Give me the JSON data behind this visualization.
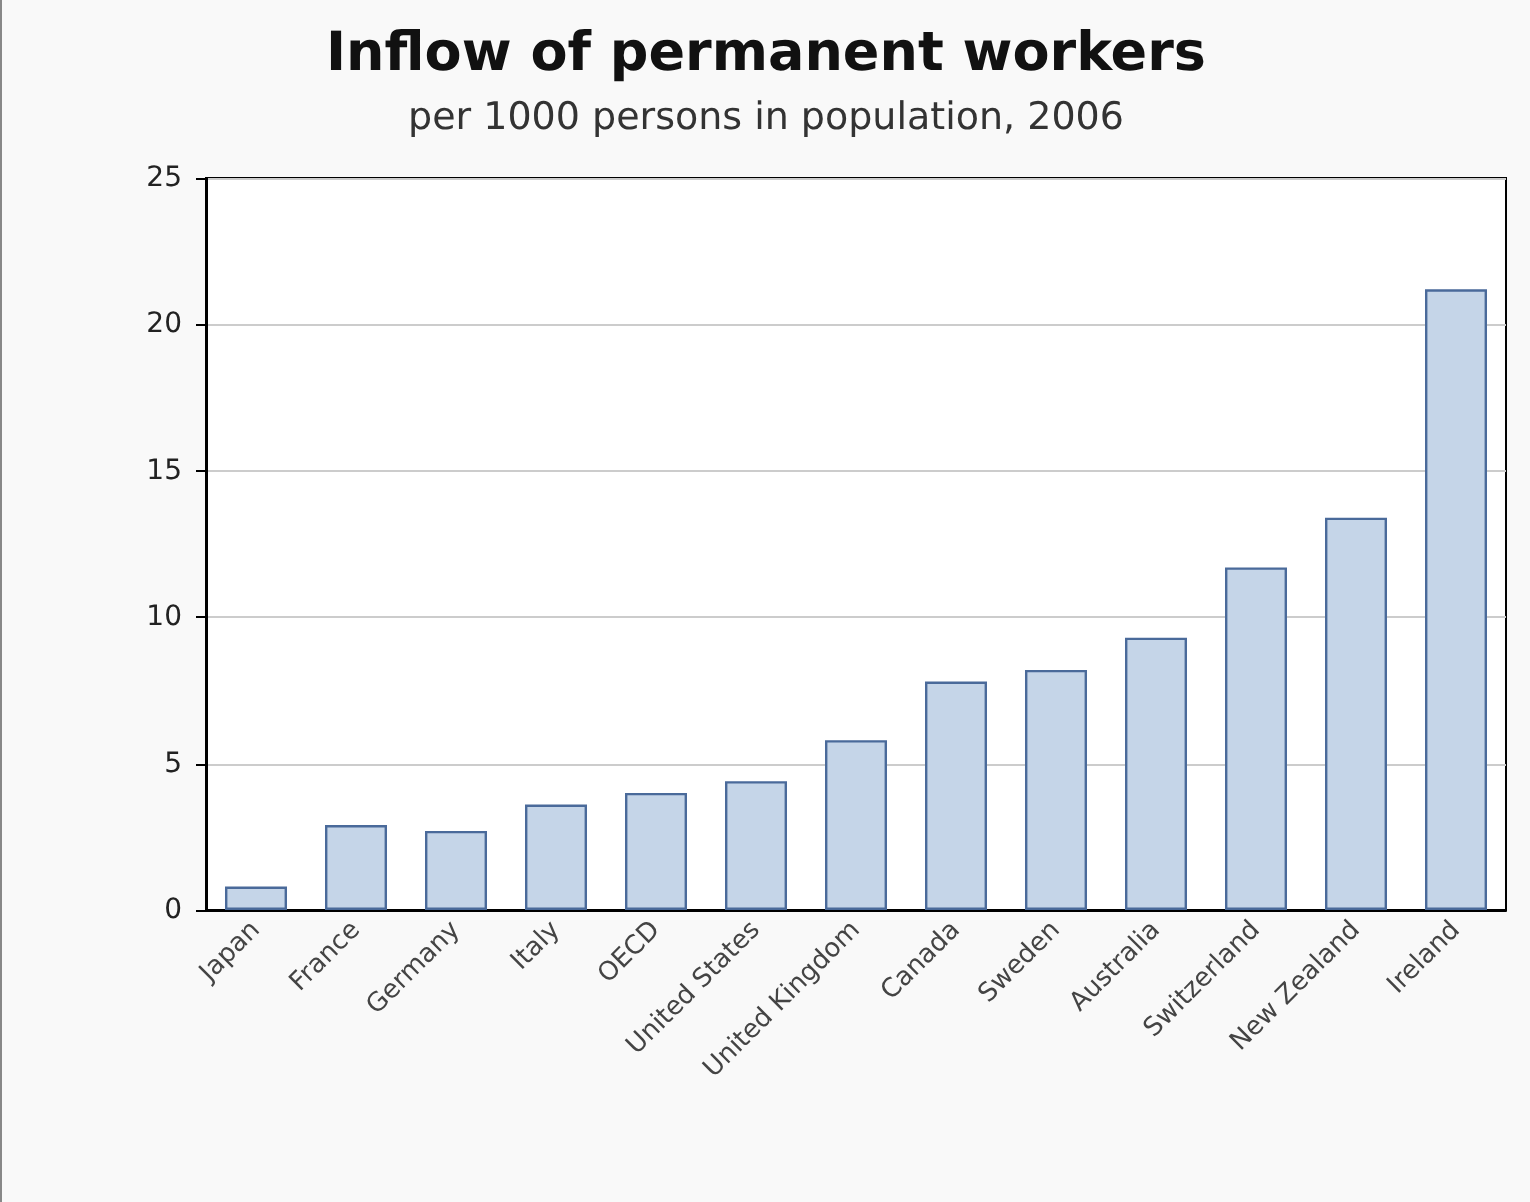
{
  "chart_data": {
    "type": "bar",
    "title": "Inflow of permanent workers",
    "subtitle": "per 1000 persons in population, 2006",
    "categories": [
      "Japan",
      "France",
      "Germany",
      "Italy",
      "OECD",
      "United States",
      "United Kingdom",
      "Canada",
      "Sweden",
      "Australia",
      "Switzerland",
      "New Zealand",
      "Ireland"
    ],
    "values": [
      0.8,
      2.9,
      2.7,
      3.6,
      4.0,
      4.4,
      5.8,
      7.8,
      8.2,
      9.3,
      11.7,
      13.4,
      21.2
    ],
    "color": "#c5d5e8",
    "ylim": [
      0,
      25
    ],
    "yticks": [
      0,
      5,
      10,
      15,
      20,
      25
    ],
    "grid": "y"
  }
}
